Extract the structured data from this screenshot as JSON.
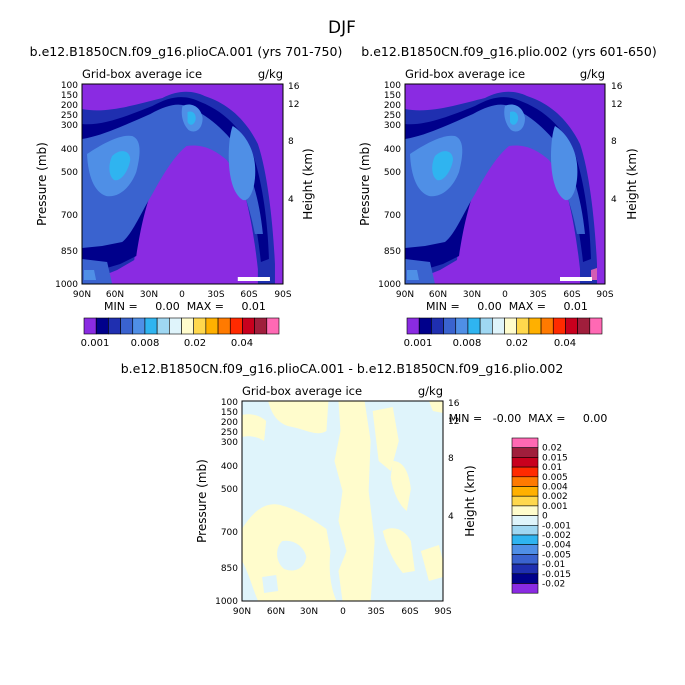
{
  "figure": {
    "title": "DJF"
  },
  "chart_data": [
    {
      "type": "heatmap",
      "title": "b.e12.B1850CN.f09_g16.plioCA.001 (yrs 701-750)",
      "subtitle": "Grid-box average ice",
      "units": "g/kg",
      "ylabel": "Pressure (mb)",
      "ylabel_right": "Height (km)",
      "x_ticks": [
        "90N",
        "60N",
        "30N",
        "0",
        "30S",
        "60S",
        "90S"
      ],
      "y_ticks": [
        "100",
        "150",
        "200",
        "250",
        "300",
        "400",
        "500",
        "700",
        "850",
        "1000"
      ],
      "height_ticks": [
        "4",
        "8",
        "12",
        "16"
      ],
      "stats": "MIN =     0.00  MAX =     0.01",
      "min": 0.0,
      "max": 0.01,
      "colorbar_levels": [
        0.001,
        0.002,
        0.004,
        0.006,
        0.008,
        0.01,
        0.012,
        0.014,
        0.016,
        0.02,
        0.025,
        0.03,
        0.035,
        0.04,
        0.045
      ],
      "colorbar_labels": [
        "0.001",
        "0.008",
        "0.02",
        "0.04"
      ],
      "colors": [
        "#8a2be2",
        "#00008b",
        "#1f2fb0",
        "#3a63cf",
        "#4f8fe6",
        "#2fb4f0",
        "#9fd7f2",
        "#dff4fb",
        "#fffccc",
        "#ffd84d",
        "#ffb000",
        "#ff7a00",
        "#ff2a00",
        "#c8001e",
        "#a01e3c",
        "#ff69b4"
      ]
    },
    {
      "type": "heatmap",
      "title": "b.e12.B1850CN.f09_g16.plio.002 (yrs 601-650)",
      "subtitle": "Grid-box average ice",
      "units": "g/kg",
      "ylabel": "Pressure (mb)",
      "ylabel_right": "Height (km)",
      "x_ticks": [
        "90N",
        "60N",
        "30N",
        "0",
        "30S",
        "60S",
        "90S"
      ],
      "y_ticks": [
        "100",
        "150",
        "200",
        "250",
        "300",
        "400",
        "500",
        "700",
        "850",
        "1000"
      ],
      "height_ticks": [
        "4",
        "8",
        "12",
        "16"
      ],
      "stats": "MIN =     0.00  MAX =     0.01",
      "min": 0.0,
      "max": 0.01,
      "colorbar_levels": [
        0.001,
        0.002,
        0.004,
        0.006,
        0.008,
        0.01,
        0.012,
        0.014,
        0.016,
        0.02,
        0.025,
        0.03,
        0.035,
        0.04,
        0.045
      ],
      "colorbar_labels": [
        "0.001",
        "0.008",
        "0.02",
        "0.04"
      ]
    },
    {
      "type": "heatmap",
      "title": "b.e12.B1850CN.f09_g16.plioCA.001 - b.e12.B1850CN.f09_g16.plio.002",
      "subtitle": "Grid-box average ice",
      "units": "g/kg",
      "ylabel": "Pressure (mb)",
      "ylabel_right": "Height (km)",
      "x_ticks": [
        "90N",
        "60N",
        "30N",
        "0",
        "30S",
        "60S",
        "90S"
      ],
      "y_ticks": [
        "100",
        "150",
        "200",
        "250",
        "300",
        "400",
        "500",
        "700",
        "850",
        "1000"
      ],
      "height_ticks": [
        "4",
        "8",
        "12",
        "16"
      ],
      "stats": "MIN =   -0.00  MAX =     0.00",
      "min": -0.0,
      "max": 0.0,
      "colorbar_labels": [
        "0.02",
        "0.015",
        "0.01",
        "0.005",
        "0.004",
        "0.002",
        "0.001",
        "0",
        "-0.001",
        "-0.002",
        "-0.004",
        "-0.005",
        "-0.01",
        "-0.015",
        "-0.02"
      ],
      "colors": [
        "#ff69b4",
        "#a01e3c",
        "#c8001e",
        "#ff2a00",
        "#ff7a00",
        "#ffb000",
        "#ffd84d",
        "#fffccc",
        "#dff4fb",
        "#9fd7f2",
        "#2fb4f0",
        "#4f8fe6",
        "#3a63cf",
        "#1f2fb0",
        "#00008b",
        "#8a2be2"
      ]
    }
  ]
}
